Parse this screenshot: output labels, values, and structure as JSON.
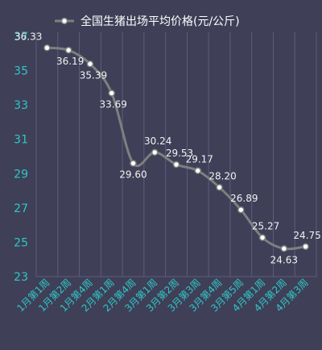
{
  "chart_data": {
    "type": "line",
    "title": "",
    "xlabel": "",
    "ylabel": "",
    "ylim": [
      23,
      37
    ],
    "yticks": [
      23,
      25,
      27,
      29,
      31,
      33,
      35,
      37
    ],
    "grid": "vertical",
    "legend": "top",
    "categories": [
      "1月第1周",
      "1月第2周",
      "1月第4周",
      "2月第1周",
      "2月第4周",
      "3月第1周",
      "3月第2周",
      "3月第3周",
      "3月第4周",
      "3月第5周",
      "4月第1周",
      "4月第2周",
      "4月第3周"
    ],
    "series": [
      {
        "name": "全国生猪出场平均价格(元/公斤)",
        "values": [
          36.33,
          36.19,
          35.39,
          33.69,
          29.6,
          30.24,
          29.53,
          29.17,
          28.2,
          26.89,
          25.27,
          24.63,
          24.75
        ],
        "labels": [
          "36.33",
          "36.19",
          "35.39",
          "33.69",
          "29.60",
          "30.24",
          "29.53",
          "29.17",
          "28.20",
          "26.89",
          "25.27",
          "24.63",
          "24.75"
        ]
      }
    ],
    "colors": {
      "background": "#3f3f58",
      "line": "#7f7f7f",
      "marker_fill": "#ffffff",
      "tick_text": "#2fc7c4",
      "label_text": "#f2f2f2",
      "grid": "#5e5e7a"
    }
  }
}
